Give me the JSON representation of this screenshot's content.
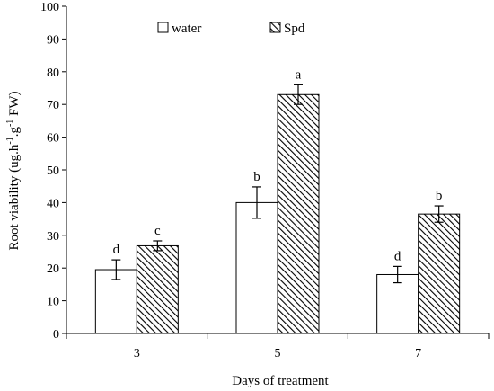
{
  "chart_data": {
    "type": "bar",
    "title": "",
    "xlabel": "Days of treatment",
    "ylabel": "Root viability (ug.h-1.g-1 FW)",
    "ylabel_parts": {
      "base": "Root viability (ug.h",
      "sup1": "-1",
      "mid": ".g",
      "sup2": "-1",
      "end": " FW)"
    },
    "ylim": [
      0,
      100
    ],
    "yticks": [
      0,
      10,
      20,
      30,
      40,
      50,
      60,
      70,
      80,
      90,
      100
    ],
    "categories": [
      "3",
      "5",
      "7"
    ],
    "legend_position": "top-left",
    "grid": false,
    "series": [
      {
        "name": "water",
        "values": [
          19.5,
          40.0,
          18.0
        ],
        "errors": [
          3.0,
          4.8,
          2.5
        ],
        "labels": [
          "d",
          "b",
          "d"
        ],
        "fill": "#ffffff",
        "pattern": "none"
      },
      {
        "name": "Spd",
        "values": [
          26.8,
          73.0,
          36.5
        ],
        "errors": [
          1.5,
          3.0,
          2.5
        ],
        "labels": [
          "c",
          "a",
          "b"
        ],
        "fill": "#ffffff",
        "pattern": "diagonal-hatch"
      }
    ]
  }
}
